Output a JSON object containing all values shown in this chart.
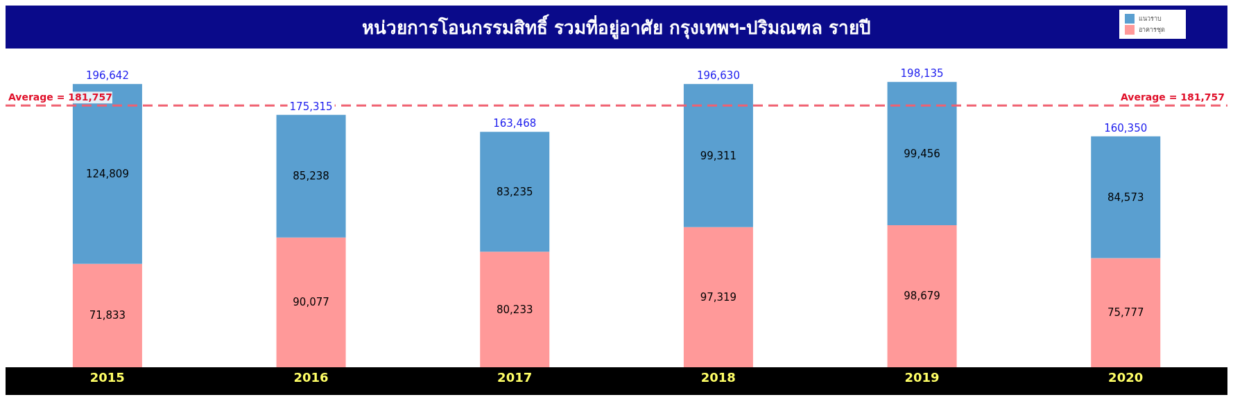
{
  "chart_data": {
    "type": "bar",
    "title": "หน่วยการโอนกรรมสิทธิ์ รวมที่อยู่อาศัย กรุงเทพฯ-ปริมณฑล รายปี",
    "categories": [
      "2015",
      "2016",
      "2017",
      "2018",
      "2019",
      "2020"
    ],
    "stacked": true,
    "series": [
      {
        "name": "อาคารชุด",
        "color": "#ff9999",
        "values": [
          71833,
          90077,
          80233,
          97319,
          98679,
          75777
        ],
        "value_labels": [
          "71,833",
          "90,077",
          "80,233",
          "97,319",
          "98,679",
          "75,777"
        ]
      },
      {
        "name": "แนวราบ",
        "color": "#5a9fd0",
        "values": [
          124809,
          85238,
          83235,
          99311,
          99456,
          84573
        ],
        "value_labels": [
          "124,809",
          "85,238",
          "83,235",
          "99,311",
          "99,456",
          "84,573"
        ]
      }
    ],
    "totals": [
      "196,642",
      "175,315",
      "163,468",
      "196,630",
      "198,135",
      "160,350"
    ],
    "ref_lines": [
      {
        "axis": "y",
        "value": 181757,
        "label": "Average = 181,757",
        "color": "#f06070",
        "line_style": "dashed"
      }
    ],
    "legend": "top right"
  }
}
